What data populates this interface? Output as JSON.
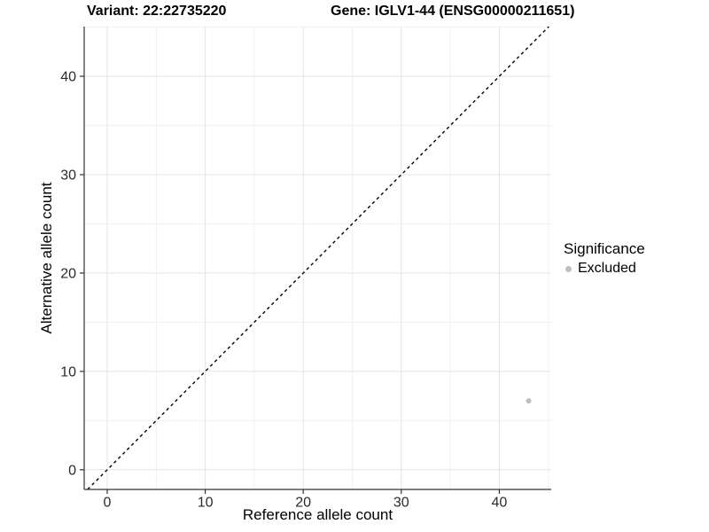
{
  "chart_data": {
    "type": "scatter",
    "title_variant": "Variant: 22:22735220",
    "title_gene": "Gene: IGLV1-44 (ENSG00000211651)",
    "xlabel": "Reference allele count",
    "ylabel": "Alternative allele count",
    "xlim": [
      -2.35,
      45.3
    ],
    "ylim": [
      -2.0,
      45.05
    ],
    "xticks": [
      0,
      10,
      20,
      30,
      40
    ],
    "yticks": [
      0,
      10,
      20,
      30,
      40
    ],
    "xticks_minor": [
      5,
      15,
      25,
      35,
      45
    ],
    "yticks_minor": [
      5,
      15,
      25,
      35,
      45
    ],
    "grid": "major+minor",
    "identity_line": {
      "equation": "y = x",
      "style": "dashed",
      "color": "#000000"
    },
    "series": [
      {
        "name": "Excluded",
        "marker": "circle",
        "color": "#bebebe",
        "points": [
          [
            43,
            7
          ]
        ]
      }
    ],
    "legend": {
      "title": "Significance",
      "position": "right",
      "items": [
        {
          "label": "Excluded",
          "color": "#bebebe",
          "marker": "circle"
        }
      ]
    }
  }
}
